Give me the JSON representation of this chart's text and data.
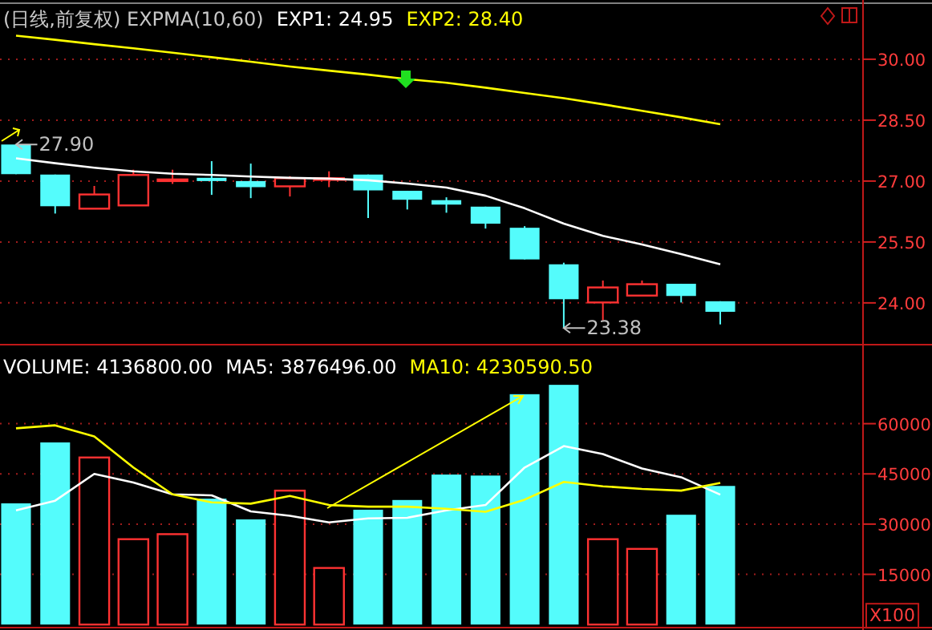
{
  "chart_data": [
    {
      "type": "candlestick",
      "title": "(日线,前复权) EXPMA(10,60)",
      "legend": "top left",
      "grid": "y",
      "categories": [
        null,
        null,
        null,
        null,
        null,
        null,
        null,
        null,
        null,
        null,
        null,
        null,
        null,
        null,
        null,
        null,
        null,
        null,
        null
      ],
      "ohlc": [
        [
          27.9,
          27.9,
          27.17,
          27.17
        ],
        [
          27.16,
          27.16,
          26.2,
          26.38
        ],
        [
          26.32,
          26.88,
          26.32,
          26.67
        ],
        [
          26.4,
          27.28,
          26.4,
          27.15
        ],
        [
          27.0,
          27.28,
          26.93,
          27.04
        ],
        [
          27.08,
          27.49,
          26.66,
          27.0
        ],
        [
          27.0,
          27.43,
          26.58,
          26.85
        ],
        [
          26.87,
          27.12,
          26.62,
          27.07
        ],
        [
          27.03,
          27.24,
          26.85,
          27.07
        ],
        [
          27.16,
          27.16,
          26.09,
          26.77
        ],
        [
          26.76,
          26.76,
          26.3,
          26.54
        ],
        [
          26.53,
          26.6,
          26.22,
          26.42
        ],
        [
          26.37,
          26.37,
          25.83,
          25.95
        ],
        [
          25.85,
          25.89,
          25.07,
          25.07
        ],
        [
          24.95,
          24.99,
          23.38,
          24.09
        ],
        [
          24.01,
          24.55,
          23.57,
          24.38
        ],
        [
          24.18,
          24.55,
          24.18,
          24.46
        ],
        [
          24.47,
          24.47,
          24.01,
          24.17
        ],
        [
          24.04,
          24.04,
          23.47,
          23.78
        ]
      ],
      "colors": [
        "#54fcfc",
        "#54fcfc",
        "#ff3232",
        "#ff3232",
        "#ff3232",
        "#54fcfc",
        "#54fcfc",
        "#ff3232",
        "#ff3232",
        "#54fcfc",
        "#54fcfc",
        "#54fcfc",
        "#54fcfc",
        "#54fcfc",
        "#54fcfc",
        "#ff3232",
        "#ff3232",
        "#54fcfc",
        "#54fcfc"
      ],
      "series": [
        {
          "type": "line",
          "name": "EXP1: 24.95",
          "color": "#ffffff",
          "values": [
            27.56,
            27.44,
            27.33,
            27.24,
            27.18,
            27.15,
            27.11,
            27.08,
            27.06,
            27.02,
            26.94,
            26.84,
            26.64,
            26.33,
            25.95,
            25.65,
            25.44,
            25.2,
            24.95
          ]
        },
        {
          "type": "line",
          "name": "EXP2: 28.40",
          "color": "#ffff00",
          "values": [
            30.58,
            30.48,
            30.37,
            30.27,
            30.16,
            30.05,
            29.94,
            29.82,
            29.72,
            29.62,
            29.51,
            29.42,
            29.3,
            29.17,
            29.04,
            28.89,
            28.73,
            28.57,
            28.4
          ]
        }
      ],
      "ylim": [
        23.05,
        31.38
      ],
      "yticks": [
        {
          "value": 24,
          "label": "24.00"
        },
        {
          "value": 25.5,
          "label": "25.50"
        },
        {
          "value": 27,
          "label": "27.00"
        },
        {
          "value": 28.5,
          "label": "28.50"
        },
        {
          "value": 30,
          "label": "30.00"
        }
      ],
      "annotations": [
        "27.90",
        "23.38"
      ]
    },
    {
      "type": "bar",
      "title": "VOLUME: 4136800.00",
      "legend": "top",
      "grid": "y",
      "categories": [
        null,
        null,
        null,
        null,
        null,
        null,
        null,
        null,
        null,
        null,
        null,
        null,
        null,
        null,
        null,
        null,
        null,
        null,
        null
      ],
      "values": [
        36200,
        54400,
        49900,
        25500,
        27000,
        37600,
        31400,
        40000,
        16900,
        34300,
        37200,
        44800,
        44500,
        68800,
        71600,
        25500,
        22600,
        32800,
        41400
      ],
      "colors": [
        "#54fcfc",
        "#54fcfc",
        "#ff3232",
        "#ff3232",
        "#ff3232",
        "#54fcfc",
        "#54fcfc",
        "#ff3232",
        "#ff3232",
        "#54fcfc",
        "#54fcfc",
        "#54fcfc",
        "#54fcfc",
        "#54fcfc",
        "#54fcfc",
        "#ff3232",
        "#ff3232",
        "#54fcfc",
        "#54fcfc"
      ],
      "series": [
        {
          "type": "line",
          "name": "MA5: 3876496.00",
          "color": "#ffffff",
          "values": [
            34100,
            37000,
            45000,
            42400,
            38900,
            38600,
            33800,
            32500,
            30500,
            31700,
            31900,
            34100,
            35700,
            46900,
            53300,
            50900,
            46600,
            44000,
            38800
          ]
        },
        {
          "type": "line",
          "name": "MA10: 4230590.50",
          "color": "#ffff00",
          "values": [
            58600,
            59500,
            56200,
            46900,
            38900,
            36500,
            36100,
            38400,
            35700,
            35200,
            35200,
            34600,
            33700,
            37300,
            42600,
            41300,
            40500,
            40000,
            42300
          ]
        }
      ],
      "ylim": [
        0,
        83600
      ],
      "yticks": [
        15000,
        30000,
        45000,
        60000
      ],
      "annotations": [
        "X100"
      ]
    }
  ]
}
